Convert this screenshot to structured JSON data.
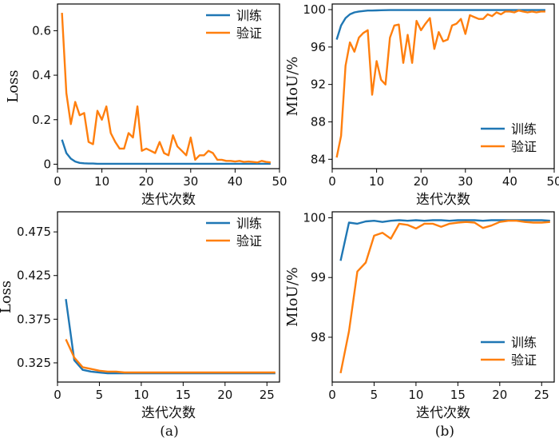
{
  "colors": {
    "train": "#1f77b4",
    "val": "#ff7f0e"
  },
  "chart_data": [
    {
      "id": "a-top",
      "type": "line",
      "ylabel": "Loss",
      "xlabel": "迭代次数",
      "xlim": [
        0,
        50
      ],
      "ylim": [
        -0.02,
        0.72
      ],
      "xticks": [
        0,
        10,
        20,
        30,
        40,
        50
      ],
      "xtick_labels": [
        "0",
        "10",
        "20",
        "30",
        "40",
        "50"
      ],
      "yticks": [
        0,
        0.2,
        0.4,
        0.6
      ],
      "ytick_labels": [
        "0",
        "0.2",
        "0.4",
        "0.6"
      ],
      "legend": [
        "训练",
        "验证"
      ],
      "series": [
        {
          "name": "训练",
          "x": [
            1,
            2,
            3,
            4,
            5,
            6,
            7,
            8,
            9,
            10,
            11,
            12,
            13,
            14,
            15,
            16,
            17,
            18,
            19,
            20,
            21,
            22,
            23,
            24,
            25,
            26,
            27,
            28,
            29,
            30,
            31,
            32,
            33,
            34,
            35,
            36,
            37,
            38,
            39,
            40,
            41,
            42,
            43,
            44,
            45,
            46,
            47,
            48
          ],
          "values": [
            0.11,
            0.05,
            0.025,
            0.012,
            0.006,
            0.004,
            0.003,
            0.003,
            0.002,
            0.002,
            0.002,
            0.002,
            0.002,
            0.002,
            0.002,
            0.002,
            0.002,
            0.002,
            0.002,
            0.002,
            0.002,
            0.002,
            0.002,
            0.002,
            0.002,
            0.002,
            0.002,
            0.002,
            0.002,
            0.002,
            0.002,
            0.002,
            0.002,
            0.002,
            0.002,
            0.002,
            0.002,
            0.002,
            0.002,
            0.002,
            0.002,
            0.002,
            0.002,
            0.002,
            0.002,
            0.002,
            0.002,
            0.002
          ]
        },
        {
          "name": "验证",
          "x": [
            1,
            2,
            3,
            4,
            5,
            6,
            7,
            8,
            9,
            10,
            11,
            12,
            13,
            14,
            15,
            16,
            17,
            18,
            19,
            20,
            21,
            22,
            23,
            24,
            25,
            26,
            27,
            28,
            29,
            30,
            31,
            32,
            33,
            34,
            35,
            36,
            37,
            38,
            39,
            40,
            41,
            42,
            43,
            44,
            45,
            46,
            47,
            48
          ],
          "values": [
            0.68,
            0.32,
            0.18,
            0.28,
            0.22,
            0.23,
            0.1,
            0.09,
            0.24,
            0.2,
            0.26,
            0.14,
            0.1,
            0.07,
            0.07,
            0.14,
            0.12,
            0.26,
            0.06,
            0.07,
            0.06,
            0.05,
            0.1,
            0.05,
            0.04,
            0.13,
            0.08,
            0.06,
            0.04,
            0.12,
            0.02,
            0.04,
            0.04,
            0.06,
            0.05,
            0.02,
            0.02,
            0.015,
            0.015,
            0.012,
            0.015,
            0.01,
            0.012,
            0.01,
            0.008,
            0.015,
            0.01,
            0.008
          ]
        }
      ]
    },
    {
      "id": "b-top",
      "type": "line",
      "ylabel": "MIoU/%",
      "xlabel": "迭代次数",
      "xlim": [
        0,
        50
      ],
      "ylim": [
        83,
        100.6
      ],
      "xticks": [
        0,
        10,
        20,
        30,
        40,
        50
      ],
      "xtick_labels": [
        "0",
        "10",
        "20",
        "30",
        "40",
        "50"
      ],
      "yticks": [
        84,
        88,
        92,
        96,
        100
      ],
      "ytick_labels": [
        "84",
        "88",
        "92",
        "96",
        "100"
      ],
      "legend": [
        "训练",
        "验证"
      ],
      "series": [
        {
          "name": "训练",
          "x": [
            1,
            2,
            3,
            4,
            5,
            6,
            7,
            8,
            9,
            10,
            11,
            12,
            13,
            14,
            15,
            16,
            17,
            18,
            19,
            20,
            21,
            22,
            23,
            24,
            25,
            26,
            27,
            28,
            29,
            30,
            31,
            32,
            33,
            34,
            35,
            36,
            37,
            38,
            39,
            40,
            41,
            42,
            43,
            44,
            45,
            46,
            47,
            48
          ],
          "values": [
            96.8,
            98.3,
            99.1,
            99.5,
            99.7,
            99.8,
            99.85,
            99.9,
            99.9,
            99.92,
            99.93,
            99.94,
            99.95,
            99.95,
            99.95,
            99.95,
            99.95,
            99.95,
            99.95,
            99.95,
            99.95,
            99.95,
            99.95,
            99.95,
            99.95,
            99.95,
            99.95,
            99.95,
            99.95,
            99.95,
            99.95,
            99.95,
            99.95,
            99.95,
            99.95,
            99.95,
            99.95,
            99.95,
            99.95,
            99.95,
            99.95,
            99.95,
            99.95,
            99.95,
            99.95,
            99.95,
            99.95,
            99.95
          ]
        },
        {
          "name": "验证",
          "x": [
            1,
            2,
            3,
            4,
            5,
            6,
            7,
            8,
            9,
            10,
            11,
            12,
            13,
            14,
            15,
            16,
            17,
            18,
            19,
            20,
            21,
            22,
            23,
            24,
            25,
            26,
            27,
            28,
            29,
            30,
            31,
            32,
            33,
            34,
            35,
            36,
            37,
            38,
            39,
            40,
            41,
            42,
            43,
            44,
            45,
            46,
            47,
            48
          ],
          "values": [
            84.2,
            86.5,
            94,
            96.5,
            95.5,
            97,
            97.5,
            97.8,
            90.9,
            94.5,
            92.5,
            92,
            97,
            98.3,
            98.4,
            94.3,
            97.3,
            94.3,
            98.8,
            97.8,
            98.5,
            99.1,
            95.8,
            97.6,
            96.6,
            96.8,
            98.3,
            98.5,
            99,
            97.4,
            99.4,
            99.2,
            99,
            99,
            99.5,
            99.3,
            99.7,
            99.5,
            99.8,
            99.8,
            99.7,
            99.9,
            99.8,
            99.7,
            99.8,
            99.7,
            99.8,
            99.8
          ]
        }
      ]
    },
    {
      "id": "a-bottom",
      "type": "line",
      "ylabel": "Loss",
      "xlabel": "迭代次数",
      "xlim": [
        0,
        26.5
      ],
      "ylim": [
        0.303,
        0.498
      ],
      "xticks": [
        0,
        5,
        10,
        15,
        20,
        25
      ],
      "xtick_labels": [
        "0",
        "5",
        "10",
        "15",
        "20",
        "25"
      ],
      "yticks": [
        0.325,
        0.375,
        0.425,
        0.475
      ],
      "ytick_labels": [
        "0.325",
        "0.375",
        "0.425",
        "0.475"
      ],
      "legend": [
        "训练",
        "验证"
      ],
      "series": [
        {
          "name": "训练",
          "x": [
            1,
            2,
            3,
            4,
            5,
            6,
            7,
            8,
            9,
            10,
            11,
            12,
            13,
            14,
            15,
            16,
            17,
            18,
            19,
            20,
            21,
            22,
            23,
            24,
            25,
            26
          ],
          "values": [
            0.398,
            0.328,
            0.317,
            0.315,
            0.314,
            0.313,
            0.313,
            0.313,
            0.313,
            0.313,
            0.313,
            0.313,
            0.313,
            0.313,
            0.313,
            0.313,
            0.313,
            0.313,
            0.313,
            0.313,
            0.313,
            0.313,
            0.313,
            0.313,
            0.313,
            0.313
          ]
        },
        {
          "name": "验证",
          "x": [
            1,
            2,
            3,
            4,
            5,
            6,
            7,
            8,
            9,
            10,
            11,
            12,
            13,
            14,
            15,
            16,
            17,
            18,
            19,
            20,
            21,
            22,
            23,
            24,
            25,
            26
          ],
          "values": [
            0.352,
            0.331,
            0.32,
            0.318,
            0.316,
            0.315,
            0.315,
            0.314,
            0.314,
            0.314,
            0.314,
            0.314,
            0.314,
            0.314,
            0.314,
            0.314,
            0.314,
            0.314,
            0.314,
            0.314,
            0.314,
            0.314,
            0.314,
            0.314,
            0.314,
            0.314
          ]
        }
      ]
    },
    {
      "id": "b-bottom",
      "type": "line",
      "ylabel": "MIoU/%",
      "xlabel": "迭代次数",
      "xlim": [
        0,
        26.5
      ],
      "ylim": [
        97.25,
        100.1
      ],
      "xticks": [
        0,
        5,
        10,
        15,
        20,
        25
      ],
      "xtick_labels": [
        "0",
        "5",
        "10",
        "15",
        "20",
        "25"
      ],
      "yticks": [
        98,
        99,
        100
      ],
      "ytick_labels": [
        "98",
        "99",
        "100"
      ],
      "legend": [
        "训练",
        "验证"
      ],
      "series": [
        {
          "name": "训练",
          "x": [
            1,
            2,
            3,
            4,
            5,
            6,
            7,
            8,
            9,
            10,
            11,
            12,
            13,
            14,
            15,
            16,
            17,
            18,
            19,
            20,
            21,
            22,
            23,
            24,
            25,
            26
          ],
          "values": [
            99.28,
            99.92,
            99.9,
            99.94,
            99.95,
            99.93,
            99.95,
            99.96,
            99.95,
            99.96,
            99.95,
            99.96,
            99.96,
            99.95,
            99.96,
            99.96,
            99.96,
            99.95,
            99.96,
            99.96,
            99.96,
            99.96,
            99.96,
            99.96,
            99.96,
            99.95
          ]
        },
        {
          "name": "验证",
          "x": [
            1,
            2,
            3,
            4,
            5,
            6,
            7,
            8,
            9,
            10,
            11,
            12,
            13,
            14,
            15,
            16,
            17,
            18,
            19,
            20,
            21,
            22,
            23,
            24,
            25,
            26
          ],
          "values": [
            97.4,
            98.1,
            99.1,
            99.25,
            99.7,
            99.75,
            99.65,
            99.9,
            99.88,
            99.82,
            99.9,
            99.9,
            99.85,
            99.9,
            99.92,
            99.93,
            99.92,
            99.83,
            99.87,
            99.93,
            99.95,
            99.95,
            99.93,
            99.92,
            99.92,
            99.93
          ]
        }
      ]
    }
  ],
  "captions": [
    "(a)",
    "(b)"
  ]
}
